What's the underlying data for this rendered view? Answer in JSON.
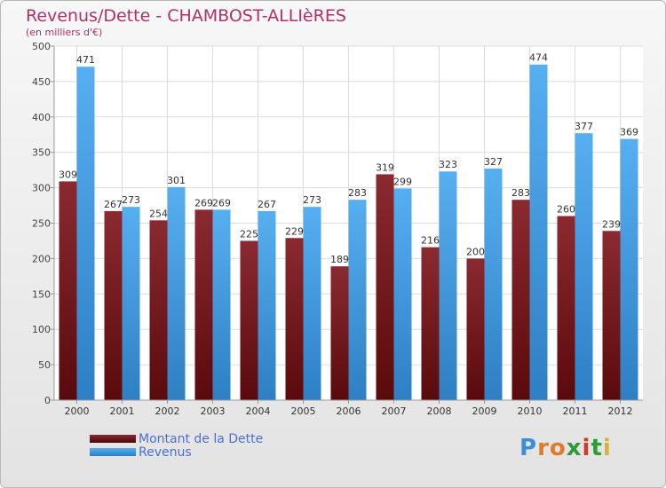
{
  "chart_data": {
    "type": "bar",
    "title": "Revenus/Dette - CHAMBOST-ALLIèRES",
    "subtitle": "(en milliers d'€)",
    "xlabel": "",
    "ylabel": "",
    "ylim": [
      0,
      500
    ],
    "yticks": [
      0,
      50,
      100,
      150,
      200,
      250,
      300,
      350,
      400,
      450,
      500
    ],
    "grid": true,
    "categories": [
      "2000",
      "2001",
      "2002",
      "2003",
      "2004",
      "2005",
      "2006",
      "2007",
      "2008",
      "2009",
      "2010",
      "2011",
      "2012"
    ],
    "series": [
      {
        "name": "Montant de la Dette",
        "color": "#7b1a1e",
        "values": [
          309,
          267,
          254,
          269,
          225,
          229,
          189,
          319,
          216,
          200,
          283,
          260,
          239
        ]
      },
      {
        "name": "Revenus",
        "color": "#4aa3e8",
        "values": [
          471,
          273,
          301,
          269,
          267,
          273,
          283,
          299,
          323,
          327,
          474,
          377,
          369
        ]
      }
    ],
    "legend_position": "bottom-left"
  },
  "logo": {
    "letters": [
      "P",
      "r",
      "o",
      "x",
      "i",
      "t",
      "i"
    ],
    "colors": [
      "#3a8fd8",
      "#e07b2a",
      "#e07b2a",
      "#2f9a3a",
      "#d23a2a",
      "#2f9a3a",
      "#e0b12a"
    ]
  }
}
